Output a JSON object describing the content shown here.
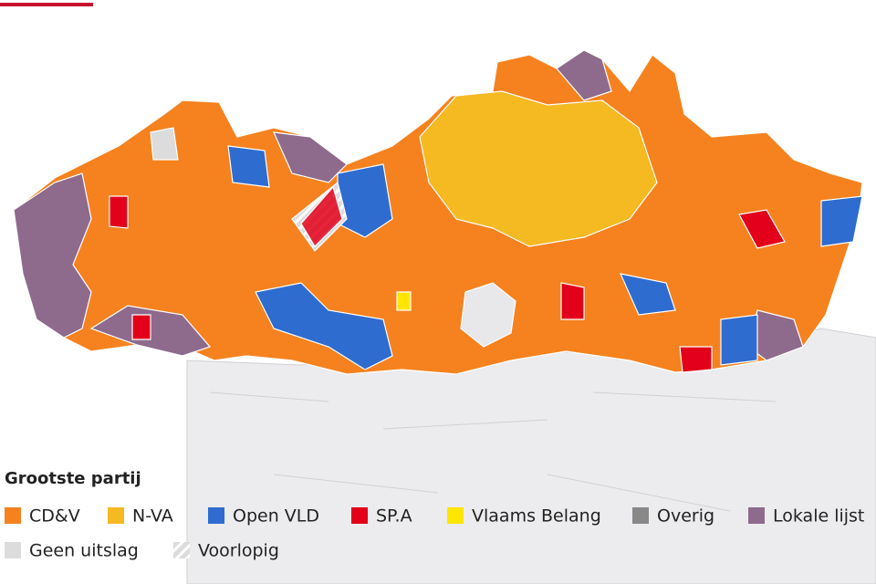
{
  "legend": {
    "title": "Grootste partij",
    "items": [
      {
        "name": "CD&V",
        "color": "#f5821f"
      },
      {
        "name": "N-VA",
        "color": "#f5b922"
      },
      {
        "name": "Open VLD",
        "color": "#2f6ccf"
      },
      {
        "name": "SP.A",
        "color": "#e2001a"
      },
      {
        "name": "Vlaams Belang",
        "color": "#ffe500"
      },
      {
        "name": "Overig",
        "color": "#888888"
      },
      {
        "name": "Lokale lijst",
        "color": "#8e6a8c"
      },
      {
        "name": "Geen uitslag",
        "color": "#dcdcdc"
      },
      {
        "name": "Voorlopig",
        "color": "#dcdcdc",
        "hatched": true
      }
    ]
  }
}
